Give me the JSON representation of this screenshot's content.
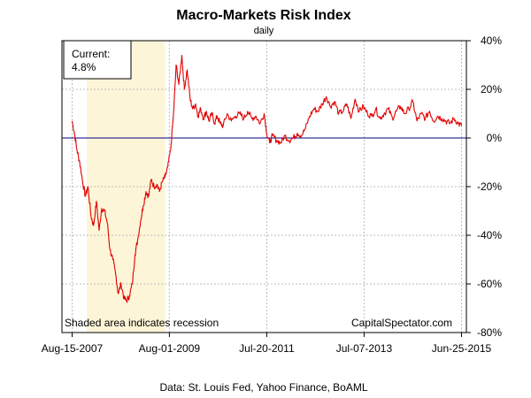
{
  "chart_data": {
    "type": "line",
    "title": "Macro-Markets Risk Index",
    "subtitle": "daily",
    "source": "Data: St. Louis Fed, Yahoo Finance, BoAML",
    "watermark": "CapitalSpectator.com",
    "recession_note": "Shaded area indicates recession",
    "current_label": "Current:",
    "current_value": "4.8%",
    "x_tick_labels": [
      "Aug-15-2007",
      "Aug-01-2009",
      "Jul-20-2011",
      "Jul-07-2013",
      "Jun-25-2015"
    ],
    "x_ticks": [
      "2007-08-15",
      "2009-08-01",
      "2011-07-20",
      "2013-07-07",
      "2015-06-25"
    ],
    "xlim": [
      "2007-06-01",
      "2015-07-31"
    ],
    "y_ticks": [
      40,
      20,
      0,
      -20,
      -40,
      -60,
      -80
    ],
    "y_tick_labels": [
      "40%",
      "20%",
      "0%",
      "-20%",
      "-40%",
      "-60%",
      "-80%"
    ],
    "ylim": [
      -80,
      40
    ],
    "grid": true,
    "reference_line": 0,
    "recession": {
      "start": "2007-12-01",
      "end": "2009-06-30"
    },
    "colors": {
      "line": "#e00000",
      "recession": "#fdf5d8",
      "zero_line": "#00007f",
      "grid": "#bdbdbd"
    },
    "series": [
      {
        "x": [
          "2007-08-15",
          "2007-09-01",
          "2007-09-20",
          "2007-10-10",
          "2007-11-01",
          "2007-11-20",
          "2007-12-10",
          "2008-01-01",
          "2008-01-20",
          "2008-02-10",
          "2008-03-01",
          "2008-03-20",
          "2008-04-10",
          "2008-05-01",
          "2008-05-20",
          "2008-06-10",
          "2008-07-01",
          "2008-07-20",
          "2008-08-10",
          "2008-09-01",
          "2008-09-20",
          "2008-10-10",
          "2008-11-01",
          "2008-11-20",
          "2008-12-10",
          "2009-01-01",
          "2009-01-20",
          "2009-02-10",
          "2009-03-01",
          "2009-03-20",
          "2009-04-10",
          "2009-05-01",
          "2009-05-20",
          "2009-06-10",
          "2009-07-01",
          "2009-07-20",
          "2009-08-10",
          "2009-09-01",
          "2009-09-20",
          "2009-10-10",
          "2009-11-01",
          "2009-11-20",
          "2009-12-10",
          "2010-01-01",
          "2010-01-20",
          "2010-02-10",
          "2010-03-01",
          "2010-03-20",
          "2010-04-10",
          "2010-05-01",
          "2010-05-20",
          "2010-06-10",
          "2010-07-01",
          "2010-07-20",
          "2010-08-10",
          "2010-09-01",
          "2010-10-01",
          "2010-11-01",
          "2010-12-01",
          "2011-01-01",
          "2011-02-01",
          "2011-03-01",
          "2011-04-01",
          "2011-05-01",
          "2011-06-01",
          "2011-07-01",
          "2011-07-20",
          "2011-08-10",
          "2011-09-01",
          "2011-10-01",
          "2011-11-01",
          "2011-12-01",
          "2012-01-01",
          "2012-02-01",
          "2012-03-01",
          "2012-04-01",
          "2012-05-01",
          "2012-06-01",
          "2012-07-01",
          "2012-08-01",
          "2012-09-01",
          "2012-10-01",
          "2012-11-01",
          "2012-12-01",
          "2013-01-01",
          "2013-02-01",
          "2013-03-01",
          "2013-04-01",
          "2013-05-01",
          "2013-06-01",
          "2013-07-01",
          "2013-08-01",
          "2013-09-01",
          "2013-10-01",
          "2013-11-01",
          "2013-12-01",
          "2014-01-01",
          "2014-02-01",
          "2014-03-01",
          "2014-04-01",
          "2014-05-01",
          "2014-06-01",
          "2014-07-01",
          "2014-08-01",
          "2014-09-01",
          "2014-10-01",
          "2014-11-01",
          "2014-12-01",
          "2015-01-01",
          "2015-02-01",
          "2015-03-01",
          "2015-04-01",
          "2015-05-01",
          "2015-06-01",
          "2015-06-25"
        ],
        "y": [
          7,
          2,
          -5,
          -10,
          -18,
          -24,
          -20,
          -32,
          -36,
          -26,
          -38,
          -29,
          -30,
          -35,
          -46,
          -50,
          -56,
          -64,
          -60,
          -66,
          -67,
          -65,
          -60,
          -48,
          -42,
          -34,
          -28,
          -22,
          -24,
          -17,
          -20,
          -19,
          -22,
          -18,
          -16,
          -12,
          -5,
          10,
          30,
          22,
          34,
          20,
          28,
          16,
          12,
          14,
          9,
          12,
          8,
          11,
          7,
          10,
          6,
          9,
          6,
          5,
          10,
          7,
          9,
          10,
          8,
          11,
          8,
          9,
          6,
          10,
          2,
          -2,
          1,
          -1,
          -2,
          1,
          -1,
          0,
          2,
          1,
          4,
          9,
          12,
          11,
          14,
          17,
          13,
          15,
          10,
          11,
          14,
          8,
          16,
          11,
          13,
          10,
          9,
          12,
          8,
          10,
          12,
          8,
          11,
          13,
          10,
          12,
          15,
          7,
          10,
          8,
          11,
          7,
          9,
          8,
          7,
          6,
          8,
          6,
          5
        ]
      }
    ]
  }
}
